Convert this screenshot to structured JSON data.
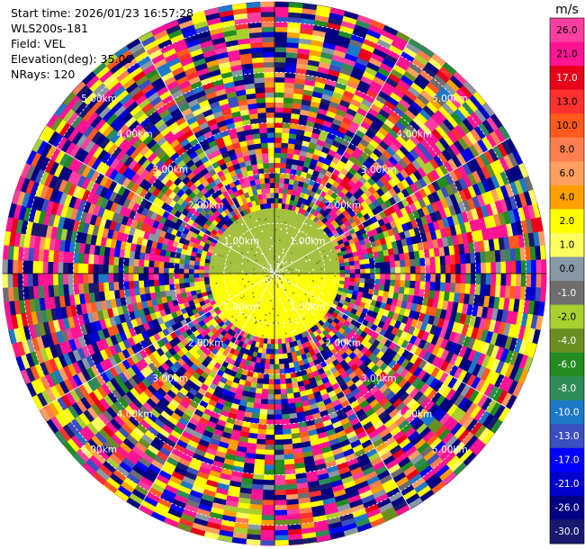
{
  "header": {
    "start_time": "Start time: 2026/01/23 16:57:28",
    "instrument": "WLS200s-181",
    "field": "Field: VEL",
    "elevation": "Elevation(deg): 35.00",
    "nrays": "NRays: 120"
  },
  "chart_data": {
    "type": "heatmap",
    "projection": "polar-ppi",
    "field": "VEL",
    "elevation_deg": 35.0,
    "nrays": 120,
    "ring_labels_km": [
      "1.00km",
      "2.00km",
      "3.00km",
      "4.00km",
      "5.00km"
    ],
    "max_range_km": 5.4,
    "colorbar": {
      "unit": "m/s",
      "ticks": [
        "26.0",
        "21.0",
        "17.0",
        "13.0",
        "10.0",
        "8.0",
        "6.0",
        "4.0",
        "2.0",
        "1.0",
        "0.0",
        "-1.0",
        "-2.0",
        "-4.0",
        "-6.0",
        "-8.0",
        "-10.0",
        "-13.0",
        "-17.0",
        "-21.0",
        "-26.0",
        "-30.0"
      ],
      "colors": [
        "#ff3fa0",
        "#ff1493",
        "#e8001a",
        "#ff3030",
        "#ff5a1e",
        "#ff7f50",
        "#ffa060",
        "#ff9f00",
        "#ffff00",
        "#ffff60",
        "#8898a4",
        "#6e6e6e",
        "#a8d030",
        "#6b8e23",
        "#228b22",
        "#2e8b57",
        "#1e78c8",
        "#3a4fc0",
        "#0000ff",
        "#0000cd",
        "#000080",
        "#191970"
      ]
    },
    "near_field": {
      "outer_km": 1.3,
      "upper_color": "#a4c03c",
      "lower_color": "#ffff00"
    }
  }
}
